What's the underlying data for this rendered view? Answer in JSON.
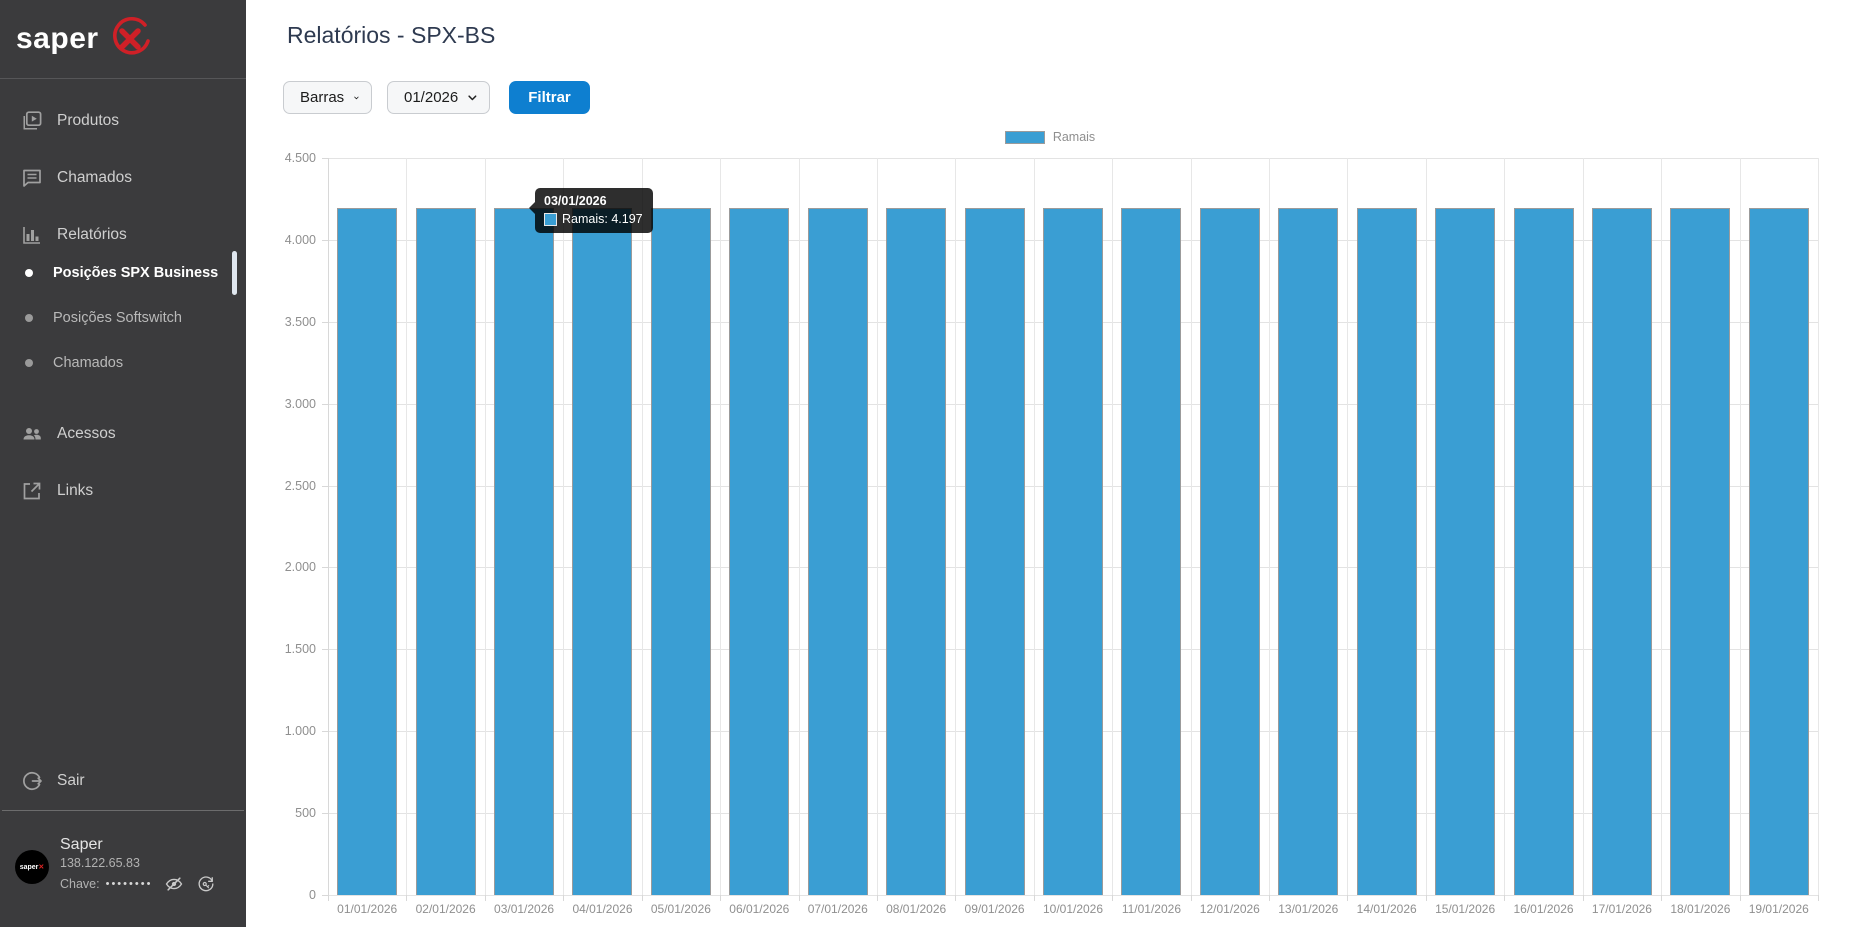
{
  "sidebar": {
    "logo_text": "saper",
    "items": [
      {
        "label": "Produtos"
      },
      {
        "label": "Chamados"
      },
      {
        "label": "Relatórios"
      },
      {
        "label": "Posições SPX Business"
      },
      {
        "label": "Posições Softswitch"
      },
      {
        "label": "Chamados"
      },
      {
        "label": "Acessos"
      },
      {
        "label": "Links"
      }
    ],
    "logout_label": "Sair",
    "user": {
      "name": "Saper",
      "ip": "138.122.65.83",
      "key_label": "Chave:",
      "key_mask": "••••••••"
    }
  },
  "header": {
    "title": "Relatórios - SPX-BS"
  },
  "filters": {
    "type_select": "Barras",
    "period_select": "01/2026",
    "submit_label": "Filtrar"
  },
  "tooltip": {
    "title": "03/01/2026",
    "label": "Ramais: 4.197"
  },
  "colors": {
    "bar_fill": "#3a9ed3",
    "bar_border": "#9b9b9b",
    "button_blue": "#0e7fd0",
    "sidebar_bg": "#3b3b3d",
    "logo_red": "#cf2027"
  },
  "chart_data": {
    "type": "bar",
    "legend": [
      "Ramais"
    ],
    "categories": [
      "01/01/2026",
      "02/01/2026",
      "03/01/2026",
      "04/01/2026",
      "05/01/2026",
      "06/01/2026",
      "07/01/2026",
      "08/01/2026",
      "09/01/2026",
      "10/01/2026",
      "11/01/2026",
      "12/01/2026",
      "13/01/2026",
      "14/01/2026",
      "15/01/2026",
      "16/01/2026",
      "17/01/2026",
      "18/01/2026",
      "19/01/2026"
    ],
    "values": [
      4197,
      4197,
      4197,
      4197,
      4197,
      4197,
      4197,
      4197,
      4197,
      4197,
      4197,
      4197,
      4197,
      4197,
      4197,
      4197,
      4197,
      4197,
      4197
    ],
    "ylim": [
      0,
      4500
    ],
    "ytick_step": 500,
    "grid": true,
    "legend_position": "top"
  }
}
